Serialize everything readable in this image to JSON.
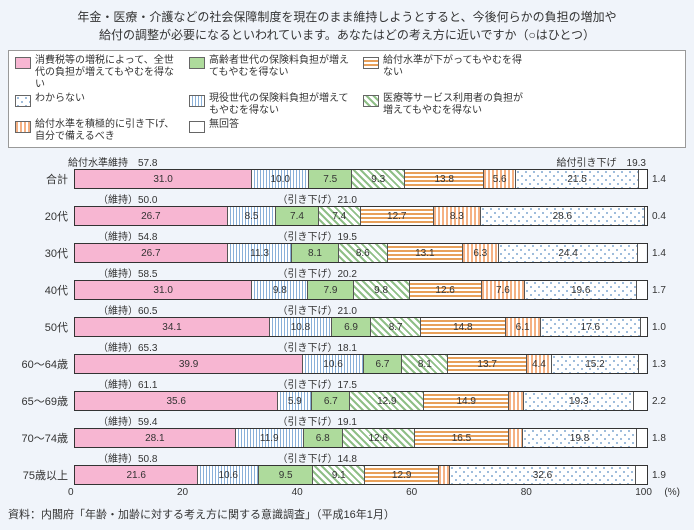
{
  "title_lines": [
    "年金・医療・介護などの社会保障制度を現在のまま維持しようとすると、今後何らかの負担の増加や",
    "給付の調整が必要になるといわれています。あなたはどの考え方に近いですか（○はひとつ）"
  ],
  "legend": [
    {
      "label": "消費税等の増税によって、全世代の負担が増えてもやむを得ない",
      "class": "p1"
    },
    {
      "label": "高齢者世代の保険料負担が増えてもやむを得ない",
      "class": "p3"
    },
    {
      "label": "給付水準が下がってもやむを得ない",
      "class": "p5"
    },
    {
      "label": "わからない",
      "class": "p7"
    },
    {
      "label": "現役世代の保険料負担が増えてもやむを得ない",
      "class": "p2"
    },
    {
      "label": "医療等サービス利用者の負担が増えてもやむを得ない",
      "class": "p4"
    },
    {
      "label": "給付水準を積極的に引き下げ、自分で備えるべき",
      "class": "p6"
    },
    {
      "label": "無回答",
      "class": "p8"
    }
  ],
  "toplabel_left": "給付水準維持　57.8",
  "toplabel_right": "給付引き下げ　19.3",
  "rows": [
    {
      "name": "合計",
      "anno_l": "",
      "anno_r": "",
      "v": [
        31.0,
        10.0,
        7.5,
        9.3,
        13.8,
        5.6,
        21.5,
        1.4
      ],
      "extra": "1.4"
    },
    {
      "name": "20代",
      "anno_l": "（維持）50.0",
      "anno_r": "（引き下げ）21.0",
      "v": [
        26.7,
        8.5,
        7.4,
        7.4,
        12.7,
        8.3,
        28.6,
        0.4
      ],
      "extra": "0.4"
    },
    {
      "name": "30代",
      "anno_l": "（維持）54.8",
      "anno_r": "（引き下げ）19.5",
      "v": [
        26.7,
        11.3,
        8.1,
        8.6,
        13.1,
        6.3,
        24.4,
        1.4
      ],
      "extra": "1.4"
    },
    {
      "name": "40代",
      "anno_l": "（維持）58.5",
      "anno_r": "（引き下げ）20.2",
      "v": [
        31.0,
        9.8,
        7.9,
        9.8,
        12.6,
        7.6,
        19.6,
        1.7
      ],
      "extra": "1.7"
    },
    {
      "name": "50代",
      "anno_l": "（維持）60.5",
      "anno_r": "（引き下げ）21.0",
      "v": [
        34.1,
        10.8,
        6.9,
        8.7,
        14.8,
        6.1,
        17.6,
        1.0
      ],
      "extra": "1.0"
    },
    {
      "name": "60～64歳",
      "anno_l": "（維持）65.3",
      "anno_r": "（引き下げ）18.1",
      "v": [
        39.9,
        10.6,
        6.7,
        8.1,
        13.7,
        4.4,
        15.2,
        1.3
      ],
      "extra": "1.3"
    },
    {
      "name": "65～69歳",
      "anno_l": "（維持）61.1",
      "anno_r": "（引き下げ）17.5",
      "v": [
        35.6,
        5.9,
        6.7,
        12.9,
        14.9,
        2.6,
        19.3,
        2.2
      ],
      "extra": "2.2"
    },
    {
      "name": "70～74歳",
      "anno_l": "（維持）59.4",
      "anno_r": "（引き下げ）19.1",
      "v": [
        28.1,
        11.9,
        6.8,
        12.6,
        16.5,
        2.5,
        19.8,
        1.8
      ],
      "extra": "1.8"
    },
    {
      "name": "75歳以上",
      "anno_l": "（維持）50.8",
      "anno_r": "（引き下げ）14.8",
      "v": [
        21.6,
        10.6,
        9.5,
        9.1,
        12.9,
        1.9,
        32.6,
        1.9
      ],
      "extra": "1.9"
    }
  ],
  "seg_classes": [
    "p1",
    "p2",
    "p3",
    "p4",
    "p5",
    "p6",
    "p7",
    "p8"
  ],
  "axis_ticks": [
    "0",
    "20",
    "40",
    "60",
    "80",
    "100"
  ],
  "axis_unit": "(%)",
  "source": "資料：内閣府「年齢・加齢に対する考え方に関する意識調査」（平成16年1月）"
}
